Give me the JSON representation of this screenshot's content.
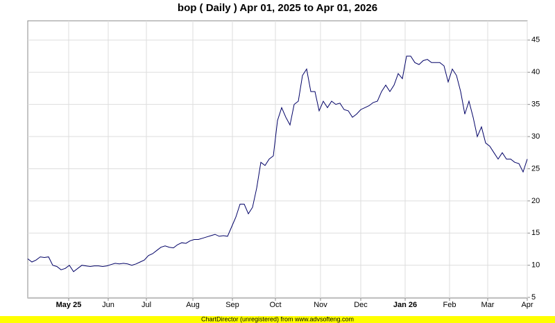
{
  "chart_data": {
    "type": "line",
    "title": "bop ( Daily ) Apr 01, 2025 to Apr 01, 2026",
    "footer": "ChartDirector (unregistered) from www.advsofteng.com",
    "color": "#000066",
    "grid": true,
    "values": [
      11,
      10.5,
      10.8,
      11.3,
      11.2,
      11.3,
      10,
      9.8,
      9.3,
      9.5,
      10,
      9,
      9.5,
      10,
      9.9,
      9.8,
      9.9,
      9.9,
      9.8,
      9.9,
      10.1,
      10.3,
      10.2,
      10.3,
      10.2,
      10,
      10.2,
      10.5,
      10.8,
      11.5,
      11.8,
      12.3,
      12.8,
      13,
      12.8,
      12.7,
      13.2,
      13.5,
      13.4,
      13.8,
      14,
      14,
      14.2,
      14.4,
      14.6,
      14.8,
      14.5,
      14.6,
      14.5,
      16,
      17.5,
      19.5,
      19.5,
      18,
      19,
      22,
      26,
      25.5,
      26.5,
      27,
      32.5,
      34.5,
      33,
      31.8,
      35,
      35.5,
      39.5,
      40.5,
      37,
      37,
      34,
      35.5,
      34.5,
      35.5,
      35,
      35.2,
      34.2,
      34,
      33,
      33.5,
      34.2,
      34.5,
      34.8,
      35.3,
      35.5,
      37,
      38,
      37,
      38,
      39.8,
      39,
      42.5,
      42.5,
      41.5,
      41.2,
      41.8,
      42,
      41.5,
      41.5,
      41.5,
      41,
      38.5,
      40.5,
      39.5,
      37,
      33.5,
      35.5,
      33,
      30,
      31.5,
      29,
      28.5,
      27.5,
      26.5,
      27.5,
      26.5,
      26.5,
      26,
      25.8,
      24.5,
      26.5
    ],
    "xlim": [
      0,
      120
    ],
    "xticks": [
      {
        "value": 9.83,
        "label": "May 25"
      },
      {
        "value": 19.33,
        "label": "Jun"
      },
      {
        "value": 28.5,
        "label": "Jul"
      },
      {
        "value": 39.67,
        "label": "Aug"
      },
      {
        "value": 49.17,
        "label": "Sep"
      },
      {
        "value": 59.5,
        "label": "Oct"
      },
      {
        "value": 70.33,
        "label": "Nov"
      },
      {
        "value": 80,
        "label": "Dec"
      },
      {
        "value": 90.67,
        "label": "Jan 26"
      },
      {
        "value": 101.33,
        "label": "Feb"
      },
      {
        "value": 110.5,
        "label": "Mar"
      },
      {
        "value": 120,
        "label": "Apr"
      }
    ],
    "ylim": [
      4.9,
      48
    ],
    "yticks": [
      5,
      10,
      15,
      20,
      25,
      30,
      35,
      40,
      45
    ]
  }
}
